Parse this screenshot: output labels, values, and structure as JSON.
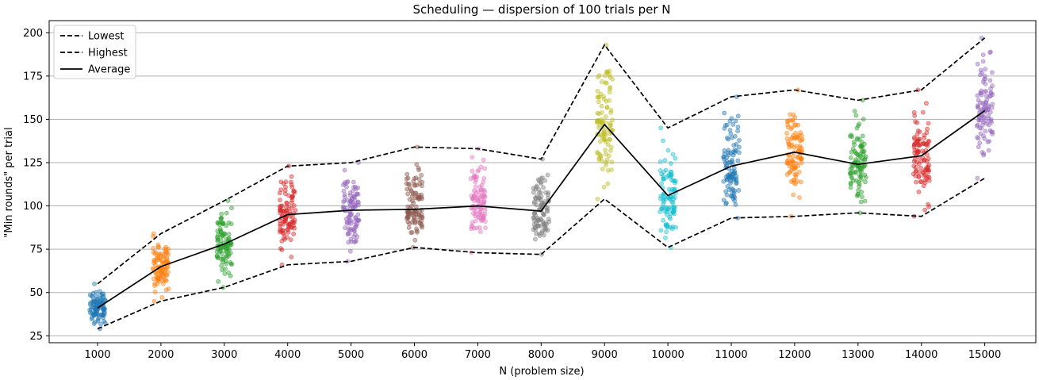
{
  "chart_data": {
    "type": "scatter",
    "title": "Scheduling — dispersion of 100 trials per N",
    "xlabel": "N  (problem size)",
    "ylabel": "\"Min rounds\" per trial",
    "categories": [
      "1000",
      "2000",
      "3000",
      "4000",
      "5000",
      "6000",
      "7000",
      "8000",
      "9000",
      "10000",
      "11000",
      "12000",
      "13000",
      "14000",
      "15000"
    ],
    "yticks": [
      25,
      50,
      75,
      100,
      125,
      150,
      175,
      200
    ],
    "ylim": [
      21,
      207
    ],
    "grid": "horizontal",
    "legend_position": "top-left",
    "series": [
      {
        "name": "Lowest",
        "style": "dashed",
        "color": "#000000",
        "values": [
          29,
          45,
          53,
          66,
          68,
          76,
          73,
          72,
          104,
          76,
          93,
          94,
          96,
          94,
          116
        ]
      },
      {
        "name": "Highest",
        "style": "dashed",
        "color": "#000000",
        "values": [
          55,
          84,
          103,
          123,
          125,
          134,
          133,
          127,
          193,
          145,
          163,
          167,
          161,
          167,
          197
        ]
      },
      {
        "name": "Average",
        "style": "solid",
        "color": "#000000",
        "values": [
          41,
          65,
          78,
          95,
          97.5,
          98,
          100,
          97,
          147,
          106,
          123,
          131,
          124,
          129,
          155
        ]
      }
    ],
    "trial_colors": [
      "#1f77b4",
      "#ff7f0e",
      "#2ca02c",
      "#d62728",
      "#9467bd",
      "#8c564b",
      "#e377c2",
      "#7f7f7f",
      "#bcbd22",
      "#17becf",
      "#1f77b4",
      "#ff7f0e",
      "#2ca02c",
      "#d62728",
      "#9467bd"
    ],
    "trials_per_n": 100
  }
}
